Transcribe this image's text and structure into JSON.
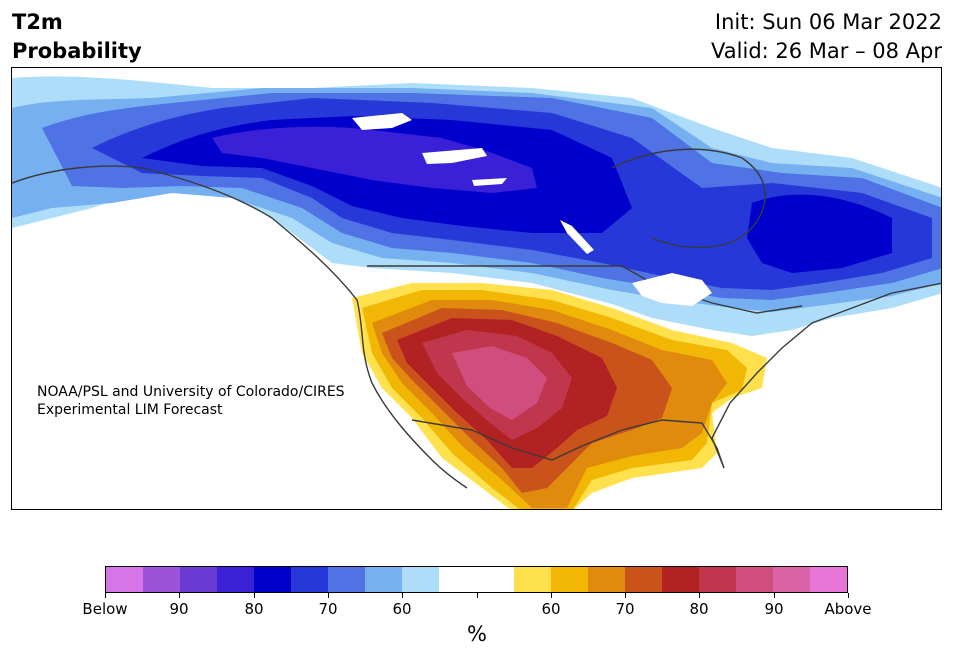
{
  "title": {
    "line1": "T2m",
    "line2": "Probability",
    "init": "Init: Sun 06 Mar 2022",
    "valid": "Valid: 26 Mar – 08 Apr"
  },
  "credit": {
    "line1": "NOAA/PSL and University of Colorado/CIRES",
    "line2": "Experimental LIM Forecast"
  },
  "colorbar": {
    "colors": [
      "#d674e8",
      "#9c52d9",
      "#6b3ad6",
      "#3a20d6",
      "#0000cc",
      "#2638d8",
      "#4f72e4",
      "#76b0f0",
      "#aeddfa",
      "#ffffff",
      "#ffffff",
      "#ffe14d",
      "#f2b705",
      "#e08a0e",
      "#c9531a",
      "#b22222",
      "#c0374d",
      "#cf4e7d",
      "#dc62a8",
      "#e876d9"
    ],
    "tick_labels": [
      "Below",
      "90",
      "80",
      "70",
      "60",
      "",
      "60",
      "70",
      "80",
      "90",
      "Above"
    ],
    "unit": "%"
  },
  "map": {
    "colors": {
      "cold_light": "#aeddfa",
      "cold_mid": "#76b0f0",
      "cold_mid2": "#4f72e4",
      "cold_strong": "#2638d8",
      "cold_deep": "#0000cc",
      "cold_extreme": "#3a20d6",
      "warm_light": "#ffe14d",
      "warm_mid": "#f2b705",
      "warm_orange": "#e08a0e",
      "warm_dark": "#c9531a",
      "warm_red": "#b22222",
      "warm_crimson": "#c0374d",
      "warm_pink": "#cf4e7d",
      "border": "#3a3a3a"
    }
  }
}
